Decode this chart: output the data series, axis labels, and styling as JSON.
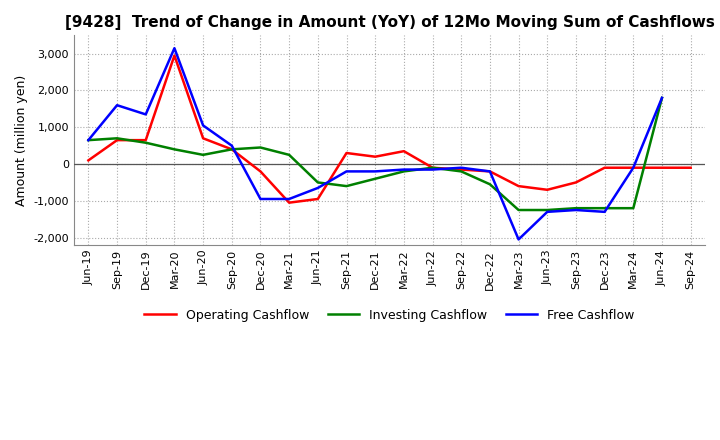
{
  "title": "[9428]  Trend of Change in Amount (YoY) of 12Mo Moving Sum of Cashflows",
  "ylabel": "Amount (million yen)",
  "ylim": [
    -2200,
    3500
  ],
  "yticks": [
    -2000,
    -1000,
    0,
    1000,
    2000,
    3000
  ],
  "x_labels": [
    "Jun-19",
    "Sep-19",
    "Dec-19",
    "Mar-20",
    "Jun-20",
    "Sep-20",
    "Dec-20",
    "Mar-21",
    "Jun-21",
    "Sep-21",
    "Dec-21",
    "Mar-22",
    "Jun-22",
    "Sep-22",
    "Dec-22",
    "Mar-23",
    "Jun-23",
    "Sep-23",
    "Dec-23",
    "Mar-24",
    "Jun-24",
    "Sep-24"
  ],
  "operating": [
    100,
    650,
    650,
    2950,
    700,
    400,
    -200,
    -1050,
    -950,
    300,
    200,
    350,
    -100,
    -150,
    -200,
    -600,
    -700,
    -500,
    -100,
    -100,
    -100,
    -100
  ],
  "investing": [
    650,
    700,
    580,
    400,
    250,
    400,
    450,
    250,
    -500,
    -600,
    -400,
    -200,
    -100,
    -200,
    -550,
    -1250,
    -1250,
    -1200,
    -1200,
    -1200,
    1800,
    null
  ],
  "free": [
    650,
    1600,
    1350,
    3150,
    1050,
    500,
    -950,
    -950,
    -650,
    -200,
    -200,
    -150,
    -150,
    -100,
    -200,
    -2050,
    -1300,
    -1250,
    -1300,
    -100,
    1800,
    null
  ],
  "line_colors": {
    "operating": "#FF0000",
    "investing": "#008000",
    "free": "#0000FF"
  },
  "legend_labels": {
    "operating": "Operating Cashflow",
    "investing": "Investing Cashflow",
    "free": "Free Cashflow"
  },
  "bg_color": "#FFFFFF",
  "grid_color": "#AAAAAA",
  "title_fontsize": 11,
  "axis_fontsize": 8,
  "linewidth": 1.8
}
